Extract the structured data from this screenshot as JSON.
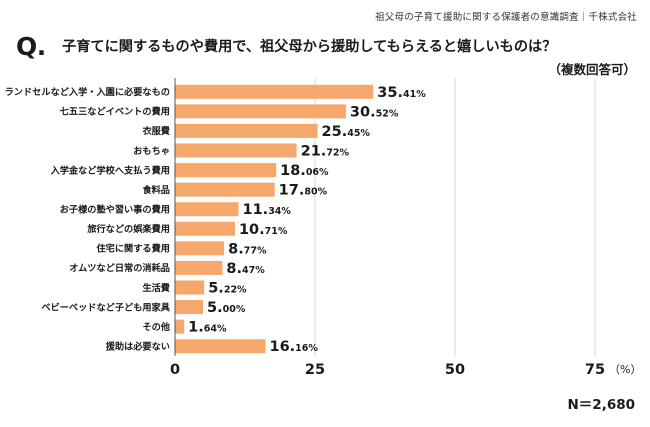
{
  "header": {
    "source": "祖父母の子育て援助に関する保護者の意識調査｜千株式会社",
    "q_mark": "Q.",
    "question": "子育てに関するものや費用で、祖父母から援助してもらえると嬉しいものは？",
    "note": "（複数回答可）"
  },
  "footer": {
    "n_label": "N＝2,680"
  },
  "colors": {
    "bar": "#f5a76c",
    "grid": "#d9d9d9",
    "axis": "#555555"
  },
  "chart_data": {
    "type": "bar",
    "orientation": "horizontal",
    "categories": [
      "ランドセルなど入学・入園に必要なもの",
      "七五三などイベントの費用",
      "衣服費",
      "おもちゃ",
      "入学金など学校へ支払う費用",
      "食料品",
      "お子様の塾や習い事の費用",
      "旅行などの娯楽費用",
      "住宅に関する費用",
      "オムツなど日常の消耗品",
      "生活費",
      "ベビーベッドなど子ども用家具",
      "その他",
      "援助は必要ない"
    ],
    "values": [
      35.41,
      30.52,
      25.45,
      21.72,
      18.06,
      17.8,
      11.34,
      10.71,
      8.77,
      8.47,
      5.22,
      5.0,
      1.64,
      16.16
    ],
    "xlim": [
      0,
      75
    ],
    "ticks": [
      "0",
      "25",
      "50",
      "75"
    ],
    "unit": "（%）",
    "grid": true
  }
}
